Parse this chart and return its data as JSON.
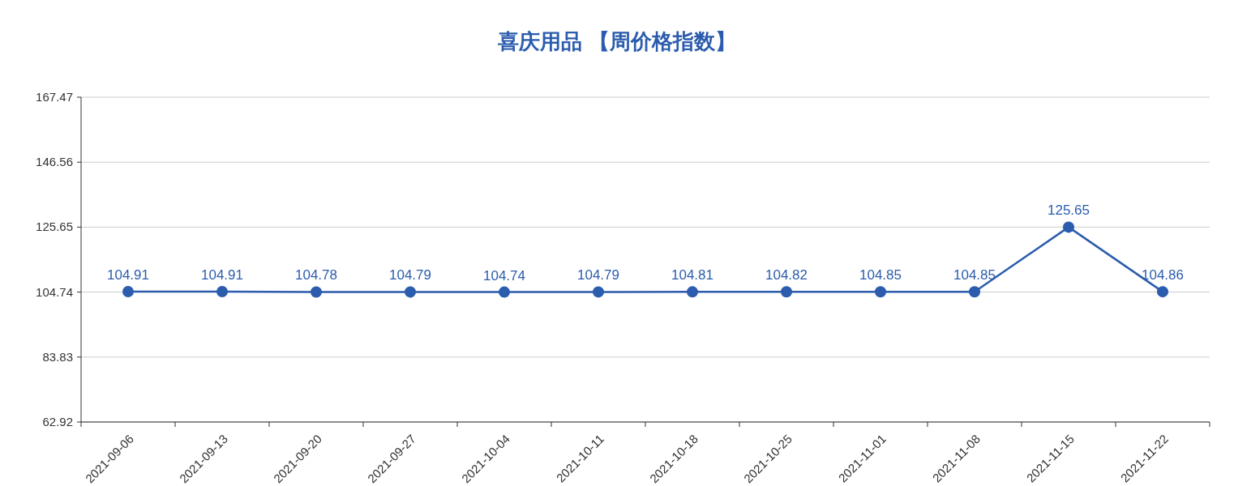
{
  "chart_data": {
    "type": "line",
    "title": "喜庆用品 【周价格指数】",
    "categories": [
      "2021-09-06",
      "2021-09-13",
      "2021-09-20",
      "2021-09-27",
      "2021-10-04",
      "2021-10-11",
      "2021-10-18",
      "2021-10-25",
      "2021-11-01",
      "2021-11-08",
      "2021-11-15",
      "2021-11-22"
    ],
    "series": [
      {
        "color": "#2b5cad",
        "values": [
          104.91,
          104.91,
          104.78,
          104.79,
          104.74,
          104.79,
          104.81,
          104.82,
          104.85,
          104.85,
          125.65,
          104.86
        ]
      }
    ],
    "ylim": [
      62.92,
      167.47
    ],
    "yticks": [
      62.92,
      83.83,
      104.74,
      125.65,
      146.56,
      167.47
    ],
    "grid": "y",
    "data_labels": true,
    "marker": "circle"
  }
}
